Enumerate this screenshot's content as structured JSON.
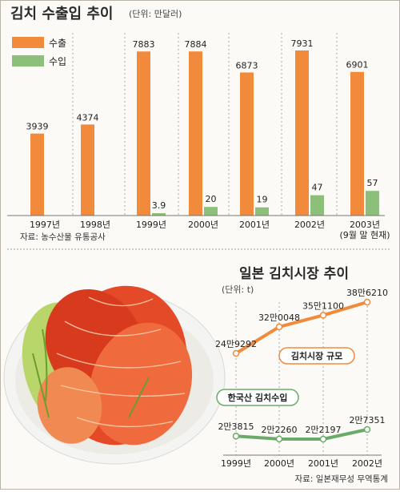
{
  "top_chart_title": "김치 수출입 추이",
  "top_chart_unit": "(단위: 만달러)",
  "bottom_chart_title": "일본 김치시장 추이",
  "bottom_chart_unit": "(단위: t)",
  "source_top": "자료: 농수산물 유통공사",
  "source_bottom": "자료: 일본재무성  무역통계",
  "colors": {
    "export": "#f28a3c",
    "import": "#8cc07a",
    "market": "#f28a3c",
    "korean_import": "#6aab6a",
    "title": "#2a2a2a"
  },
  "chart_data": [
    {
      "type": "bar",
      "title": "김치 수출입 추이",
      "unit": "만달러",
      "categories": [
        "1997년",
        "1998년",
        "1999년",
        "2000년",
        "2001년",
        "2002년",
        "2003년"
      ],
      "category_note": "(9월 말 현재)",
      "series": [
        {
          "name": "수출",
          "values": [
            3939,
            4374,
            7883,
            7884,
            6873,
            7931,
            6901
          ],
          "labels": [
            "3939",
            "4374",
            "7883",
            "7884",
            "6873",
            "7931",
            "6901"
          ]
        },
        {
          "name": "수입",
          "values": [
            null,
            null,
            3.9,
            20,
            19,
            47,
            57
          ],
          "labels": [
            "",
            "",
            "3.9",
            "20",
            "19",
            "47",
            "57"
          ]
        }
      ],
      "ylim": [
        0,
        8200
      ],
      "legend": "top-left"
    },
    {
      "type": "line",
      "title": "일본 김치시장 추이",
      "unit": "t",
      "x": [
        "1999년",
        "2000년",
        "2001년",
        "2002년"
      ],
      "series": [
        {
          "name": "김치시장 규모",
          "values": [
            249292,
            320048,
            351100,
            386210
          ],
          "labels": [
            "24만9292",
            "32만0048",
            "35만1100",
            "38만6210"
          ]
        },
        {
          "name": "한국산 김치수입",
          "values": [
            23815,
            22260,
            22197,
            27351
          ],
          "labels": [
            "2만3815",
            "2만2260",
            "2만2197",
            "2만7351"
          ]
        }
      ]
    }
  ]
}
